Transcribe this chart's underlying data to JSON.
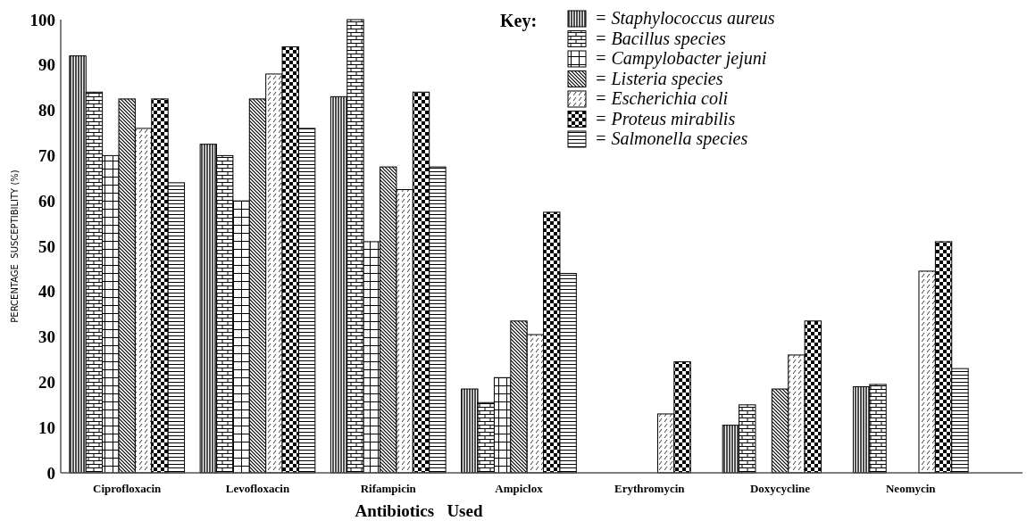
{
  "chart_data": {
    "type": "bar",
    "xlabel": "Antibiotics   Used",
    "ylabel": "PERCENTAGE  SUSCEPTIBILITY (%)",
    "legend_title": "Key:",
    "legend": "top right",
    "categories": [
      "Ciprofloxacin",
      "Levofloxacin",
      "Rifampicin",
      "Ampiclox",
      "Erythromycin",
      "Doxycycline",
      "Neomycin"
    ],
    "ylim": [
      0,
      100
    ],
    "yticks": [
      0,
      10,
      20,
      30,
      40,
      50,
      60,
      70,
      80,
      90,
      100
    ],
    "series": [
      {
        "name": "= Staphylococcus aureus",
        "color": "#000000",
        "values": [
          92,
          72.5,
          83,
          18.5,
          0,
          10.5,
          19
        ]
      },
      {
        "name": "= Bacillus species",
        "color": "#000000",
        "values": [
          84,
          70,
          100,
          15.5,
          0,
          15,
          19.5
        ]
      },
      {
        "name": "= Campylobacter jejuni",
        "color": "#000000",
        "values": [
          70,
          60,
          51,
          21,
          0,
          0,
          0
        ]
      },
      {
        "name": "= Listeria species",
        "color": "#000000",
        "values": [
          82.5,
          82.5,
          67.5,
          33.5,
          0,
          18.5,
          0
        ]
      },
      {
        "name": "= Escherichia coli",
        "color": "#000000",
        "values": [
          76,
          88,
          62.5,
          30.5,
          13,
          26,
          44.5
        ]
      },
      {
        "name": "= Proteus mirabilis",
        "color": "#000000",
        "values": [
          82.5,
          94,
          84,
          57.5,
          24.5,
          33.5,
          51
        ]
      },
      {
        "name": "= Salmonella species",
        "color": "#000000",
        "values": [
          64,
          76,
          67.5,
          44,
          0,
          0,
          23
        ]
      }
    ]
  }
}
